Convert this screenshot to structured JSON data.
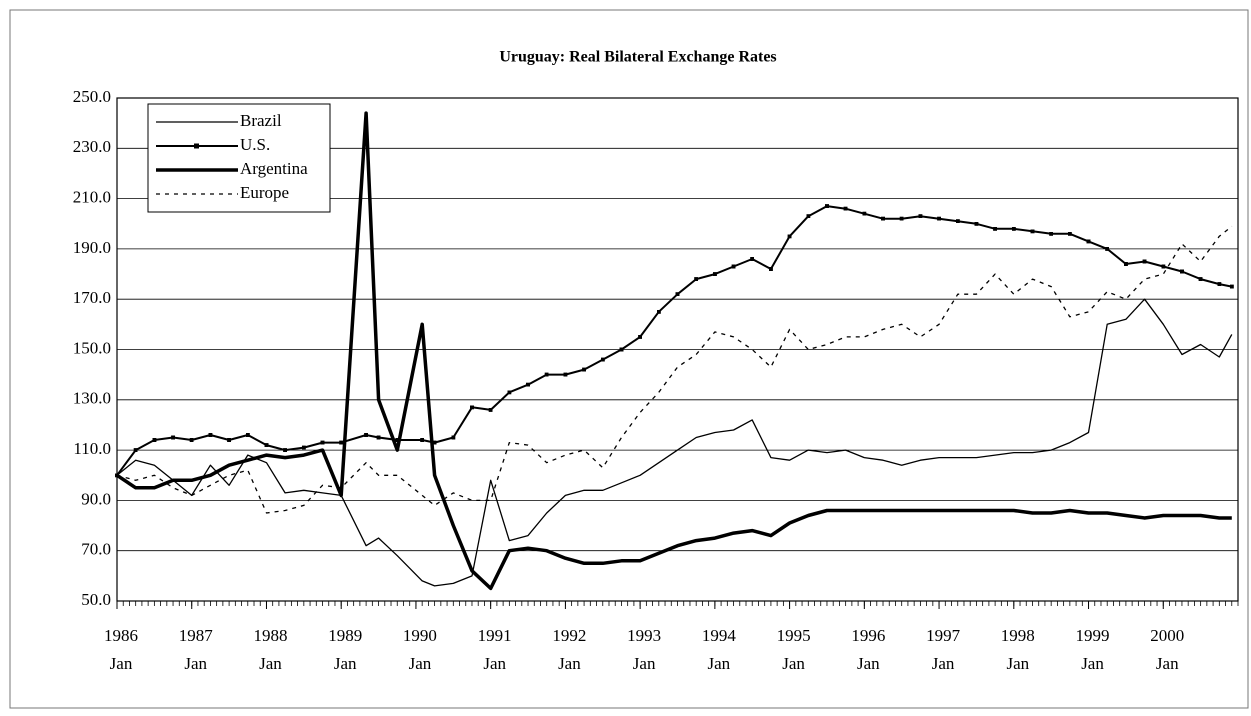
{
  "chart_data": {
    "type": "line",
    "title": "Uruguay: Real Bilateral Exchange Rates",
    "x": [
      "1986-01",
      "1986-04",
      "1986-07",
      "1986-10",
      "1987-01",
      "1987-04",
      "1987-07",
      "1987-10",
      "1988-01",
      "1988-04",
      "1988-07",
      "1988-10",
      "1989-01",
      "1989-05",
      "1989-07",
      "1989-10",
      "1990-02",
      "1990-04",
      "1990-07",
      "1990-10",
      "1991-01",
      "1991-04",
      "1991-07",
      "1991-10",
      "1992-01",
      "1992-04",
      "1992-07",
      "1992-10",
      "1993-01",
      "1993-04",
      "1993-07",
      "1993-10",
      "1994-01",
      "1994-04",
      "1994-07",
      "1994-10",
      "1995-01",
      "1995-04",
      "1995-07",
      "1995-10",
      "1996-01",
      "1996-04",
      "1996-07",
      "1996-10",
      "1997-01",
      "1997-04",
      "1997-07",
      "1997-10",
      "1998-01",
      "1998-04",
      "1998-07",
      "1998-10",
      "1999-01",
      "1999-04",
      "1999-07",
      "1999-10",
      "2000-01",
      "2000-04",
      "2000-07",
      "2000-10",
      "2000-12"
    ],
    "series": [
      {
        "name": "Brazil",
        "color": "#000000",
        "width": 1.3,
        "dash": "none",
        "marker": false,
        "values": [
          100,
          106,
          104,
          98,
          92,
          104,
          96,
          108,
          105,
          93,
          94,
          93,
          92,
          72,
          75,
          68,
          58,
          56,
          57,
          60,
          98,
          74,
          76,
          85,
          92,
          94,
          94,
          97,
          100,
          105,
          110,
          115,
          117,
          118,
          122,
          107,
          106,
          110,
          109,
          110,
          107,
          106,
          104,
          106,
          107,
          107,
          107,
          108,
          109,
          109,
          110,
          113,
          117,
          160,
          162,
          170,
          160,
          148,
          152,
          147,
          156
        ]
      },
      {
        "name": "U.S.",
        "color": "#000000",
        "width": 2,
        "dash": "none",
        "marker": true,
        "values": [
          100,
          110,
          114,
          115,
          114,
          116,
          114,
          116,
          112,
          110,
          111,
          113,
          113,
          116,
          115,
          114,
          114,
          113,
          115,
          127,
          126,
          133,
          136,
          140,
          140,
          142,
          146,
          150,
          155,
          165,
          172,
          178,
          180,
          183,
          186,
          182,
          195,
          203,
          207,
          206,
          204,
          202,
          202,
          203,
          202,
          201,
          200,
          198,
          198,
          197,
          196,
          196,
          193,
          190,
          184,
          185,
          183,
          181,
          178,
          176,
          175
        ]
      },
      {
        "name": "Argentina",
        "color": "#000000",
        "width": 3.5,
        "dash": "none",
        "marker": false,
        "values": [
          100,
          95,
          95,
          98,
          98,
          100,
          104,
          106,
          108,
          107,
          108,
          110,
          92,
          244,
          130,
          110,
          160,
          100,
          80,
          62,
          55,
          70,
          71,
          70,
          67,
          65,
          65,
          66,
          66,
          69,
          72,
          74,
          75,
          77,
          78,
          76,
          81,
          84,
          86,
          86,
          86,
          86,
          86,
          86,
          86,
          86,
          86,
          86,
          86,
          85,
          85,
          86,
          85,
          85,
          84,
          83,
          84,
          84,
          84,
          83,
          83
        ]
      },
      {
        "name": "Europe",
        "color": "#000000",
        "width": 1.3,
        "dash": "4 5",
        "marker": false,
        "values": [
          100,
          98,
          100,
          95,
          92,
          96,
          100,
          102,
          85,
          86,
          88,
          96,
          95,
          105,
          100,
          100,
          92,
          88,
          93,
          90,
          90,
          113,
          112,
          105,
          108,
          110,
          103,
          115,
          125,
          133,
          143,
          148,
          157,
          155,
          150,
          143,
          158,
          150,
          152,
          155,
          155,
          158,
          160,
          155,
          160,
          172,
          172,
          180,
          172,
          178,
          175,
          163,
          165,
          173,
          170,
          178,
          180,
          192,
          185,
          195,
          199
        ]
      }
    ],
    "xlim": [
      "1986-01",
      "2001-01"
    ],
    "xticks": [
      {
        "value": "1986-01",
        "label": "1986",
        "sublabel": "Jan"
      },
      {
        "value": "1987-01",
        "label": "1987",
        "sublabel": "Jan"
      },
      {
        "value": "1988-01",
        "label": "1988",
        "sublabel": "Jan"
      },
      {
        "value": "1989-01",
        "label": "1989",
        "sublabel": "Jan"
      },
      {
        "value": "1990-01",
        "label": "1990",
        "sublabel": "Jan"
      },
      {
        "value": "1991-01",
        "label": "1991",
        "sublabel": "Jan"
      },
      {
        "value": "1992-01",
        "label": "1992",
        "sublabel": "Jan"
      },
      {
        "value": "1993-01",
        "label": "1993",
        "sublabel": "Jan"
      },
      {
        "value": "1994-01",
        "label": "1994",
        "sublabel": "Jan"
      },
      {
        "value": "1995-01",
        "label": "1995",
        "sublabel": "Jan"
      },
      {
        "value": "1996-01",
        "label": "1996",
        "sublabel": "Jan"
      },
      {
        "value": "1997-01",
        "label": "1997",
        "sublabel": "Jan"
      },
      {
        "value": "1998-01",
        "label": "1998",
        "sublabel": "Jan"
      },
      {
        "value": "1999-01",
        "label": "1999",
        "sublabel": "Jan"
      },
      {
        "value": "2000-01",
        "label": "2000",
        "sublabel": "Jan"
      }
    ],
    "ylim": [
      50,
      250
    ],
    "yticks": [
      {
        "value": 50,
        "label": "50.0"
      },
      {
        "value": 70,
        "label": "70.0"
      },
      {
        "value": 90,
        "label": "90.0"
      },
      {
        "value": 110,
        "label": "110.0"
      },
      {
        "value": 130,
        "label": "130.0"
      },
      {
        "value": 150,
        "label": "150.0"
      },
      {
        "value": 170,
        "label": "170.0"
      },
      {
        "value": 190,
        "label": "190.0"
      },
      {
        "value": 210,
        "label": "210.0"
      },
      {
        "value": 230,
        "label": "230.0"
      },
      {
        "value": 250,
        "label": "250.0"
      }
    ],
    "grid": true,
    "legend": "upper left"
  }
}
